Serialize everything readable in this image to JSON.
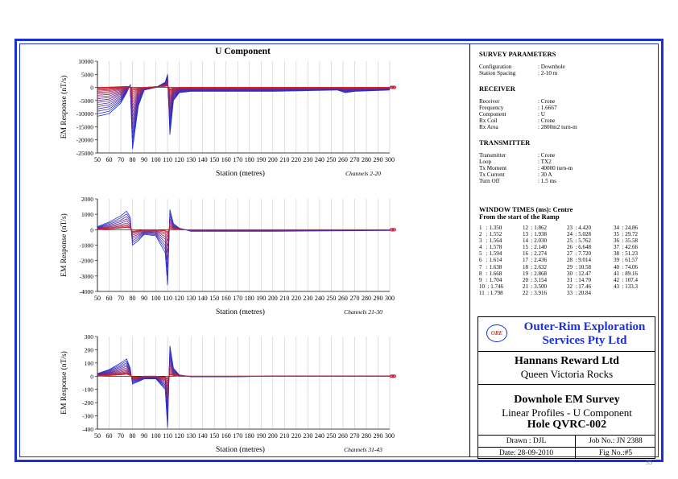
{
  "chart_data": [
    {
      "type": "line",
      "title": "U Component",
      "xlabel": "Station (metres)",
      "ylabel": "EM Response (nT/s)",
      "note": "Channels 2-20",
      "xlim": [
        50,
        300
      ],
      "ylim": [
        -25000,
        10000
      ],
      "yticks": [
        10000,
        5000,
        0,
        -5000,
        -10000,
        -15000,
        -20000,
        -25000
      ],
      "yticklabels": [
        "10000",
        "5000",
        "0",
        "-5000",
        "-10000",
        "-15000",
        "-20000",
        "-25000"
      ],
      "xticks": [
        50,
        60,
        70,
        80,
        90,
        100,
        110,
        120,
        130,
        140,
        150,
        160,
        170,
        180,
        190,
        200,
        210,
        220,
        230,
        240,
        250,
        260,
        270,
        280,
        290,
        300
      ],
      "channels": 19,
      "profile": {
        "early_stations": [
          50,
          60,
          70,
          75,
          78,
          80,
          85,
          90,
          100,
          108,
          110,
          112,
          115,
          120,
          130,
          160,
          200,
          255,
          262,
          270,
          300
        ],
        "early_values": [
          -11000,
          -10000,
          -6000,
          -2000,
          1000,
          -23500,
          -7000,
          -1000,
          0,
          2000,
          5000,
          -18000,
          -5000,
          -2000,
          -1500,
          -1500,
          -1500,
          -1000,
          -2000,
          -1500,
          -1000
        ],
        "late_values": [
          0,
          100,
          300,
          400,
          300,
          -500,
          -300,
          0,
          300,
          400,
          600,
          -600,
          -200,
          0,
          0,
          0,
          0,
          0,
          0,
          0,
          0
        ]
      }
    },
    {
      "type": "line",
      "xlabel": "Station (metres)",
      "ylabel": "EM Response (nT/s)",
      "note": "Channels 21-30",
      "xlim": [
        50,
        300
      ],
      "ylim": [
        -4000,
        2000
      ],
      "yticks": [
        2000,
        1000,
        0,
        -1000,
        -2000,
        -3000,
        -4000
      ],
      "yticklabels": [
        "2000",
        "1000",
        "0",
        "-1000",
        "-2000",
        "-3000",
        "-4000"
      ],
      "xticks": [
        50,
        60,
        70,
        80,
        90,
        100,
        110,
        120,
        130,
        140,
        150,
        160,
        170,
        180,
        190,
        200,
        210,
        220,
        230,
        240,
        250,
        260,
        270,
        280,
        290,
        300
      ],
      "channels": 10,
      "profile": {
        "early_stations": [
          50,
          60,
          70,
          75,
          78,
          80,
          85,
          90,
          100,
          108,
          110,
          112,
          115,
          120,
          130,
          160,
          200,
          300
        ],
        "early_values": [
          200,
          500,
          900,
          1200,
          800,
          -1000,
          -700,
          -300,
          -400,
          -1500,
          -3600,
          1300,
          400,
          100,
          -100,
          -100,
          -100,
          -50
        ],
        "late_values": [
          0,
          50,
          100,
          150,
          100,
          -100,
          -50,
          0,
          0,
          -50,
          -150,
          100,
          50,
          0,
          0,
          0,
          0,
          0
        ]
      }
    },
    {
      "type": "line",
      "xlabel": "Station (metres)",
      "ylabel": "EM Response (nT/s)",
      "note": "Channels 31-43",
      "xlim": [
        50,
        300
      ],
      "ylim": [
        -400,
        300
      ],
      "yticks": [
        300,
        200,
        100,
        0,
        -100,
        -200,
        -300,
        -400
      ],
      "yticklabels": [
        "300",
        "200",
        "100",
        "0",
        "-100",
        "-200",
        "-300",
        "-400"
      ],
      "xticks": [
        50,
        60,
        70,
        80,
        90,
        100,
        110,
        120,
        130,
        140,
        150,
        160,
        170,
        180,
        190,
        200,
        210,
        220,
        230,
        240,
        250,
        260,
        270,
        280,
        290,
        300
      ],
      "channels": 13,
      "profile": {
        "early_stations": [
          50,
          60,
          70,
          75,
          78,
          80,
          85,
          90,
          100,
          108,
          110,
          112,
          115,
          120,
          130,
          160,
          200,
          300
        ],
        "early_values": [
          20,
          50,
          100,
          130,
          60,
          -60,
          -40,
          -20,
          -20,
          -100,
          -390,
          230,
          60,
          10,
          -5,
          -5,
          0,
          0
        ],
        "late_values": [
          0,
          5,
          10,
          15,
          5,
          -5,
          -5,
          0,
          0,
          -5,
          -15,
          10,
          5,
          0,
          0,
          0,
          0,
          0
        ]
      }
    }
  ],
  "survey": {
    "title": "SURVEY PARAMETERS",
    "rows": [
      [
        "Configuration",
        ": Downhole"
      ],
      [
        "Station Spacing",
        ": 2-10 m"
      ]
    ]
  },
  "receiver": {
    "title": "RECEIVER",
    "rows": [
      [
        "Receiver",
        ": Crone"
      ],
      [
        "Frequency",
        ": 1.6667"
      ],
      [
        "Component",
        ": U"
      ],
      [
        "Rx Coil",
        ": Crone"
      ],
      [
        "Rx Area",
        ": 2800m2 turn-m"
      ]
    ]
  },
  "transmitter": {
    "title": "TRANSMITTER",
    "rows": [
      [
        "Transmitter",
        ": Crone"
      ],
      [
        "Loop",
        ": TX2"
      ],
      [
        "Tx Moment",
        ": 40000 turn-m"
      ],
      [
        "Tx Current",
        ": 30 A"
      ],
      [
        "Turn Off",
        ": 1.5 ms"
      ]
    ]
  },
  "window_times": {
    "title_line1": "WINDOW TIMES (ms): Centre",
    "title_line2": "From the start of the Ramp",
    "col1": "1   : 1.350\n2   : 1.552\n3   : 1.564\n4   : 1.578\n5   : 1.594\n6   : 1.614\n7   : 1.638\n8   : 1.668\n9   : 1.704\n10  : 1.746\n11  : 1.798",
    "col2": "12  : 1.862\n13  : 1.938\n14  : 2.030\n15  : 2.140\n16  : 2.274\n17  : 2.436\n18  : 2.632\n19  : 2.868\n20  : 3.154\n21  : 3.500\n22  : 3.916",
    "col3": "23  : 4.420\n24  : 5.028\n25  : 5.762\n26  : 6.648\n27  : 7.720\n28  : 9.014\n29  : 10.58\n30  : 12.47\n31  : 14.70\n32  : 17.46\n33  : 20.84",
    "col4": "34  : 24.86\n35  : 29.72\n36  : 35.58\n37  : 42.66\n38  : 51.23\n39  : 61.57\n40  : 74.06\n41  : 89.16\n42  : 107.4\n43  : 133.3"
  },
  "title_block": {
    "logo": "ORE",
    "company_line1": "Outer-Rim Exploration",
    "company_line2": "Services Pty Ltd",
    "client": "Hannans Reward Ltd",
    "project": "Queen Victoria Rocks",
    "survey_title": "Downhole EM Survey",
    "survey_subtitle": "Linear Profiles - U Component",
    "hole": "Hole QVRC-002",
    "drawn": "Drawn : DJL",
    "job": "Job No.: JN 2388",
    "date": "Date: 28-09-2010",
    "fig": "Fig No.:#5"
  },
  "page_number": "35",
  "colors": {
    "frame": "#1a2fd8",
    "early": "#1a2fd8",
    "late": "#e0201e",
    "company": "#1a2fd8"
  }
}
